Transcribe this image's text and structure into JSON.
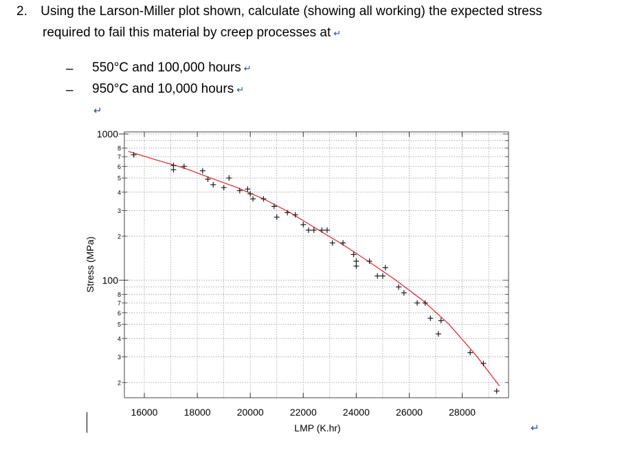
{
  "question": {
    "number": "2.",
    "line1": "Using the Larson-Miller plot shown, calculate (showing all working) the expected stress",
    "line2": "required to fail this material by creep processes at",
    "bullets": [
      {
        "dash": "–",
        "text": "550°C and 100,000 hours"
      },
      {
        "dash": "–",
        "text": "950°C and 10,000 hours"
      }
    ],
    "return_mark": "↵"
  },
  "chart_data": {
    "type": "scatter",
    "xlabel": "LMP (K.hr)",
    "ylabel": "Stress (MPa)",
    "xlim": [
      15000,
      29500
    ],
    "ylim": [
      1.6,
      1200
    ],
    "y_scale": "log",
    "x_ticks": [
      16000,
      18000,
      20000,
      22000,
      24000,
      26000,
      28000
    ],
    "y_major_ticks": [
      {
        "value": 1000,
        "label": "1000"
      },
      {
        "value": 100,
        "label": "100"
      }
    ],
    "y_minor_ticks": [
      {
        "value": 800,
        "label": "8"
      },
      {
        "value": 700,
        "label": "7"
      },
      {
        "value": 600,
        "label": "6"
      },
      {
        "value": 500,
        "label": "5"
      },
      {
        "value": 400,
        "label": "4"
      },
      {
        "value": 300,
        "label": "3"
      },
      {
        "value": 200,
        "label": "2"
      },
      {
        "value": 80,
        "label": "8"
      },
      {
        "value": 70,
        "label": "7"
      },
      {
        "value": 60,
        "label": "6"
      },
      {
        "value": 50,
        "label": "5"
      },
      {
        "value": 40,
        "label": "4"
      },
      {
        "value": 30,
        "label": "3"
      },
      {
        "value": 20,
        "label": "2"
      }
    ],
    "grid": true,
    "points": [
      [
        15600,
        720
      ],
      [
        17100,
        610
      ],
      [
        17100,
        570
      ],
      [
        17500,
        600
      ],
      [
        18200,
        560
      ],
      [
        18400,
        490
      ],
      [
        18600,
        450
      ],
      [
        19000,
        430
      ],
      [
        19200,
        500
      ],
      [
        19600,
        410
      ],
      [
        19900,
        420
      ],
      [
        20000,
        390
      ],
      [
        20100,
        360
      ],
      [
        20500,
        360
      ],
      [
        20900,
        320
      ],
      [
        21000,
        270
      ],
      [
        21400,
        290
      ],
      [
        21700,
        280
      ],
      [
        22000,
        240
      ],
      [
        22200,
        220
      ],
      [
        22400,
        220
      ],
      [
        22700,
        220
      ],
      [
        22900,
        220
      ],
      [
        23100,
        180
      ],
      [
        23500,
        180
      ],
      [
        23900,
        150
      ],
      [
        24000,
        125
      ],
      [
        24000,
        135
      ],
      [
        24500,
        135
      ],
      [
        24800,
        107
      ],
      [
        25000,
        107
      ],
      [
        25100,
        122
      ],
      [
        25600,
        90
      ],
      [
        25800,
        82
      ],
      [
        26300,
        70
      ],
      [
        26600,
        70
      ],
      [
        26800,
        55
      ],
      [
        27100,
        43
      ],
      [
        27200,
        53
      ],
      [
        28300,
        32
      ],
      [
        28800,
        27
      ],
      [
        29300,
        17.5
      ]
    ],
    "fit_curve": [
      [
        15400,
        760
      ],
      [
        16500,
        660
      ],
      [
        17500,
        585
      ],
      [
        18500,
        500
      ],
      [
        19500,
        430
      ],
      [
        20500,
        360
      ],
      [
        21500,
        290
      ],
      [
        22500,
        225
      ],
      [
        23500,
        175
      ],
      [
        24500,
        133
      ],
      [
        25500,
        100
      ],
      [
        26500,
        73
      ],
      [
        27500,
        50
      ],
      [
        28500,
        31
      ],
      [
        29400,
        19
      ]
    ],
    "series_color": "#1a1a1a",
    "fit_color": "#e0202a"
  }
}
